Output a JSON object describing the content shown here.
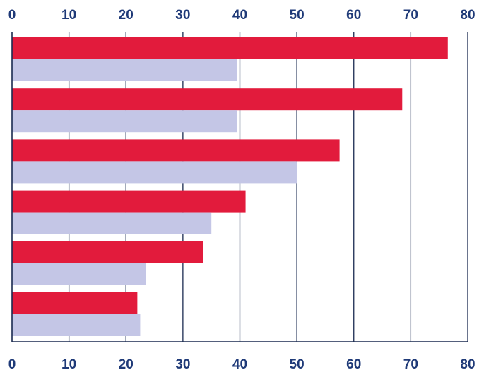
{
  "chart_data": {
    "type": "bar",
    "orientation": "horizontal",
    "categories": [
      "",
      "",
      "",
      "",
      "",
      ""
    ],
    "series": [
      {
        "values": [
          76.5,
          68.5,
          57.5,
          41,
          33.5,
          22
        ]
      },
      {
        "values": [
          39.5,
          39.5,
          50,
          35,
          23.5,
          22.5
        ]
      }
    ],
    "xlim": [
      0,
      80
    ],
    "xticks": [
      0,
      10,
      20,
      30,
      40,
      50,
      60,
      70,
      80
    ],
    "xtick_labels": [
      "0",
      "10",
      "20",
      "30",
      "40",
      "50",
      "60",
      "70",
      "80"
    ],
    "tick_label_positions": [
      "top",
      "bottom"
    ],
    "grid": "vertical",
    "legend": "none",
    "title": "",
    "xlabel": "",
    "ylabel": ""
  },
  "colors": {
    "series_1": "#e21b3c",
    "series_2": "#c4c6e6",
    "axis": "#1a2a50",
    "tick_text": "#1f3a78"
  }
}
